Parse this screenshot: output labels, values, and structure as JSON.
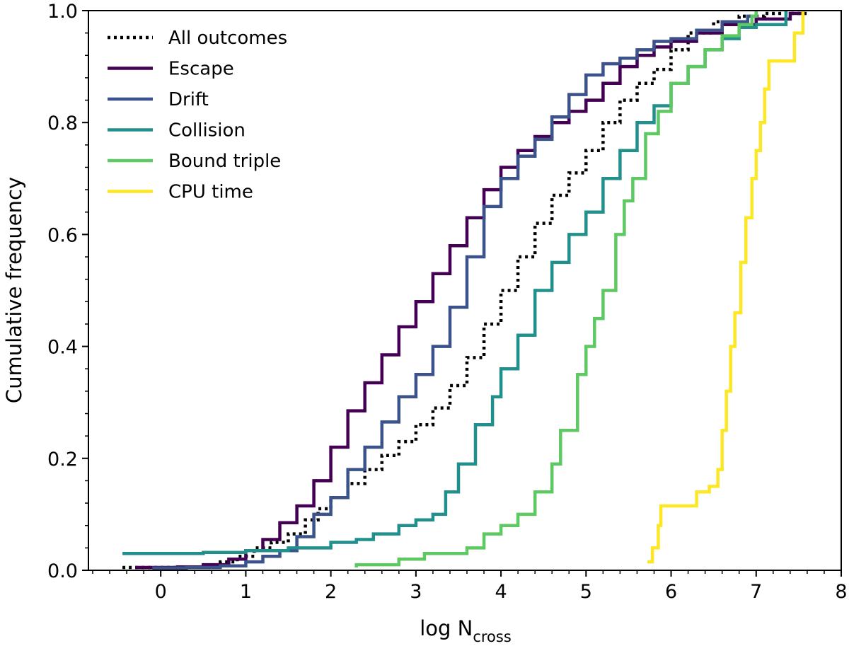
{
  "chart_data": {
    "type": "line",
    "subtype": "cumulative-step",
    "title": "",
    "xlabel": "log N",
    "xlabel_subscript": "cross",
    "ylabel": "Cumulative frequency",
    "xlim": [
      -0.85,
      8
    ],
    "ylim": [
      0,
      1.0
    ],
    "x_ticks": [
      0,
      1,
      2,
      3,
      4,
      5,
      6,
      7,
      8
    ],
    "x_tick_labels": [
      "0",
      "1",
      "2",
      "3",
      "4",
      "5",
      "6",
      "7",
      "8"
    ],
    "x_minor_step": 0.2,
    "y_ticks": [
      0.0,
      0.2,
      0.4,
      0.6,
      0.8,
      1.0
    ],
    "y_tick_labels": [
      "0.0",
      "0.2",
      "0.4",
      "0.6",
      "0.8",
      "1.0"
    ],
    "y_minor_step": 0.04,
    "grid": false,
    "legend_position": "top-left",
    "series": [
      {
        "name": "All outcomes",
        "color": "#000000",
        "dash": "dotted",
        "points": [
          [
            -0.45,
            0.005
          ],
          [
            -0.2,
            0.005
          ],
          [
            0.2,
            0.006
          ],
          [
            0.5,
            0.008
          ],
          [
            0.7,
            0.015
          ],
          [
            0.9,
            0.025
          ],
          [
            1.1,
            0.04
          ],
          [
            1.3,
            0.05
          ],
          [
            1.5,
            0.065
          ],
          [
            1.7,
            0.09
          ],
          [
            1.85,
            0.11
          ],
          [
            2.0,
            0.13
          ],
          [
            2.2,
            0.155
          ],
          [
            2.4,
            0.18
          ],
          [
            2.6,
            0.205
          ],
          [
            2.8,
            0.23
          ],
          [
            3.0,
            0.26
          ],
          [
            3.2,
            0.29
          ],
          [
            3.4,
            0.33
          ],
          [
            3.6,
            0.38
          ],
          [
            3.8,
            0.44
          ],
          [
            4.0,
            0.5
          ],
          [
            4.2,
            0.56
          ],
          [
            4.4,
            0.62
          ],
          [
            4.6,
            0.67
          ],
          [
            4.8,
            0.71
          ],
          [
            5.0,
            0.75
          ],
          [
            5.2,
            0.8
          ],
          [
            5.4,
            0.84
          ],
          [
            5.6,
            0.87
          ],
          [
            5.8,
            0.895
          ],
          [
            6.0,
            0.93
          ],
          [
            6.2,
            0.96
          ],
          [
            6.5,
            0.98
          ],
          [
            6.8,
            0.99
          ],
          [
            7.1,
            0.995
          ],
          [
            7.6,
            1.0
          ]
        ]
      },
      {
        "name": "Escape",
        "color": "#440154",
        "dash": "solid",
        "points": [
          [
            -0.3,
            0.005
          ],
          [
            0.2,
            0.006
          ],
          [
            0.5,
            0.01
          ],
          [
            0.8,
            0.02
          ],
          [
            1.0,
            0.035
          ],
          [
            1.2,
            0.055
          ],
          [
            1.4,
            0.085
          ],
          [
            1.6,
            0.115
          ],
          [
            1.8,
            0.16
          ],
          [
            2.0,
            0.22
          ],
          [
            2.2,
            0.285
          ],
          [
            2.4,
            0.335
          ],
          [
            2.6,
            0.385
          ],
          [
            2.8,
            0.435
          ],
          [
            3.0,
            0.48
          ],
          [
            3.2,
            0.53
          ],
          [
            3.4,
            0.58
          ],
          [
            3.6,
            0.63
          ],
          [
            3.8,
            0.68
          ],
          [
            4.0,
            0.72
          ],
          [
            4.2,
            0.75
          ],
          [
            4.4,
            0.775
          ],
          [
            4.6,
            0.8
          ],
          [
            4.8,
            0.82
          ],
          [
            5.0,
            0.84
          ],
          [
            5.2,
            0.87
          ],
          [
            5.4,
            0.9
          ],
          [
            5.6,
            0.92
          ],
          [
            5.8,
            0.935
          ],
          [
            6.0,
            0.945
          ],
          [
            6.3,
            0.96
          ],
          [
            6.6,
            0.975
          ],
          [
            7.0,
            0.985
          ],
          [
            7.4,
            0.995
          ],
          [
            7.55,
            1.0
          ]
        ]
      },
      {
        "name": "Drift",
        "color": "#3b528b",
        "dash": "solid",
        "points": [
          [
            -0.1,
            0.004
          ],
          [
            0.3,
            0.005
          ],
          [
            0.7,
            0.008
          ],
          [
            1.0,
            0.015
          ],
          [
            1.2,
            0.025
          ],
          [
            1.4,
            0.035
          ],
          [
            1.6,
            0.06
          ],
          [
            1.8,
            0.1
          ],
          [
            2.0,
            0.13
          ],
          [
            2.2,
            0.18
          ],
          [
            2.4,
            0.22
          ],
          [
            2.6,
            0.265
          ],
          [
            2.8,
            0.31
          ],
          [
            3.0,
            0.35
          ],
          [
            3.2,
            0.4
          ],
          [
            3.4,
            0.47
          ],
          [
            3.6,
            0.56
          ],
          [
            3.8,
            0.65
          ],
          [
            4.0,
            0.7
          ],
          [
            4.2,
            0.74
          ],
          [
            4.4,
            0.77
          ],
          [
            4.6,
            0.81
          ],
          [
            4.8,
            0.85
          ],
          [
            5.0,
            0.885
          ],
          [
            5.2,
            0.905
          ],
          [
            5.4,
            0.915
          ],
          [
            5.6,
            0.93
          ],
          [
            5.8,
            0.945
          ],
          [
            6.0,
            0.95
          ],
          [
            6.3,
            0.965
          ],
          [
            6.6,
            0.98
          ],
          [
            6.9,
            0.99
          ],
          [
            7.0,
            1.0
          ]
        ]
      },
      {
        "name": "Collision",
        "color": "#21908d",
        "dash": "solid",
        "points": [
          [
            -0.45,
            0.03
          ],
          [
            0.5,
            0.032
          ],
          [
            1.0,
            0.035
          ],
          [
            1.5,
            0.04
          ],
          [
            2.0,
            0.05
          ],
          [
            2.3,
            0.055
          ],
          [
            2.5,
            0.065
          ],
          [
            2.8,
            0.08
          ],
          [
            3.0,
            0.09
          ],
          [
            3.2,
            0.1
          ],
          [
            3.35,
            0.14
          ],
          [
            3.5,
            0.19
          ],
          [
            3.7,
            0.26
          ],
          [
            3.9,
            0.31
          ],
          [
            4.0,
            0.36
          ],
          [
            4.2,
            0.42
          ],
          [
            4.4,
            0.5
          ],
          [
            4.6,
            0.55
          ],
          [
            4.8,
            0.6
          ],
          [
            5.0,
            0.64
          ],
          [
            5.2,
            0.7
          ],
          [
            5.4,
            0.75
          ],
          [
            5.6,
            0.8
          ],
          [
            5.8,
            0.83
          ],
          [
            6.0,
            0.87
          ],
          [
            6.2,
            0.9
          ],
          [
            6.4,
            0.93
          ],
          [
            6.6,
            0.95
          ],
          [
            6.8,
            0.97
          ],
          [
            7.0,
            0.975
          ],
          [
            7.2,
            0.975
          ],
          [
            7.35,
            1.0
          ]
        ]
      },
      {
        "name": "Bound triple",
        "color": "#5ec962",
        "dash": "solid",
        "points": [
          [
            2.3,
            0.005
          ],
          [
            2.3,
            0.01
          ],
          [
            2.8,
            0.01
          ],
          [
            2.8,
            0.02
          ],
          [
            3.1,
            0.03
          ],
          [
            3.6,
            0.04
          ],
          [
            3.8,
            0.065
          ],
          [
            4.0,
            0.08
          ],
          [
            4.2,
            0.1
          ],
          [
            4.4,
            0.14
          ],
          [
            4.6,
            0.19
          ],
          [
            4.7,
            0.25
          ],
          [
            4.9,
            0.35
          ],
          [
            5.0,
            0.4
          ],
          [
            5.1,
            0.45
          ],
          [
            5.2,
            0.5
          ],
          [
            5.35,
            0.6
          ],
          [
            5.45,
            0.66
          ],
          [
            5.55,
            0.7
          ],
          [
            5.7,
            0.78
          ],
          [
            5.85,
            0.82
          ],
          [
            6.0,
            0.87
          ],
          [
            6.2,
            0.9
          ],
          [
            6.4,
            0.93
          ],
          [
            6.6,
            0.955
          ],
          [
            6.8,
            0.975
          ],
          [
            6.95,
            0.99
          ],
          [
            7.0,
            1.0
          ]
        ]
      },
      {
        "name": "CPU time",
        "color": "#fde725",
        "dash": "solid",
        "points": [
          [
            5.72,
            0.015
          ],
          [
            5.78,
            0.04
          ],
          [
            5.85,
            0.08
          ],
          [
            5.88,
            0.115
          ],
          [
            6.1,
            0.115
          ],
          [
            6.25,
            0.115
          ],
          [
            6.3,
            0.14
          ],
          [
            6.45,
            0.15
          ],
          [
            6.55,
            0.18
          ],
          [
            6.6,
            0.25
          ],
          [
            6.65,
            0.32
          ],
          [
            6.7,
            0.4
          ],
          [
            6.75,
            0.46
          ],
          [
            6.82,
            0.55
          ],
          [
            6.88,
            0.63
          ],
          [
            6.95,
            0.7
          ],
          [
            7.0,
            0.75
          ],
          [
            7.05,
            0.8
          ],
          [
            7.1,
            0.86
          ],
          [
            7.15,
            0.91
          ],
          [
            7.38,
            0.91
          ],
          [
            7.45,
            0.96
          ],
          [
            7.55,
            1.0
          ]
        ]
      }
    ]
  }
}
